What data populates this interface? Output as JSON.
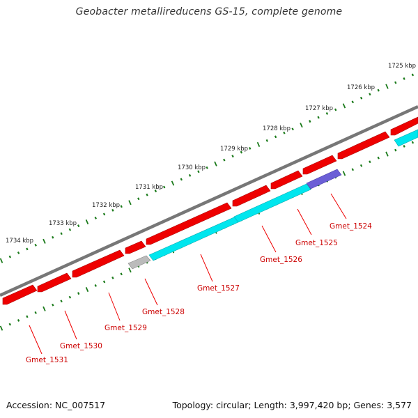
{
  "title": "Geobacter metallireducens GS-15, complete genome",
  "footer": {
    "accession_label": "Accession:",
    "accession": "NC_007517",
    "topology_label": "Topology:",
    "topology": "circular",
    "length_label": "Length:",
    "length": "3,997,420 bp",
    "genes_label": "Genes:",
    "genes": "3,577"
  },
  "ruler": {
    "ticks": [
      "1725 kbp",
      "1726 kbp",
      "1727 kbp",
      "1728 kbp",
      "1729 kbp",
      "1730 kbp",
      "1731 kbp",
      "1732 kbp",
      "1733 kbp",
      "1734 kbp"
    ]
  },
  "gene_labels": [
    "Gmet_1524",
    "Gmet_1525",
    "Gmet_1526",
    "Gmet_1527",
    "Gmet_1528",
    "Gmet_1529",
    "Gmet_1530",
    "Gmet_1531"
  ],
  "colors": {
    "backbone": "#7a7a7a",
    "gene_red": "#ee0000",
    "gene_cyan": "#00e0e8",
    "gene_purple": "#6b5fd6",
    "gene_gray": "#b8b8b8",
    "tick_green": "#1a7a1a",
    "label_red": "#cc0000"
  }
}
